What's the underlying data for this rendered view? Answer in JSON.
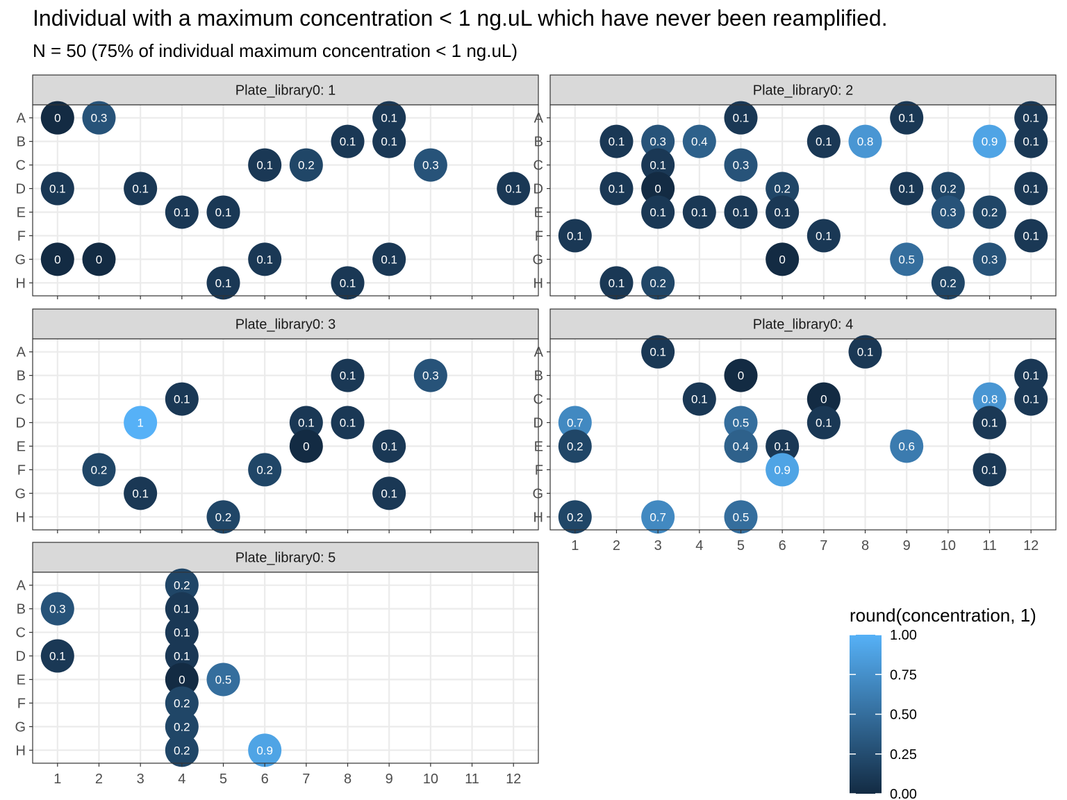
{
  "title": "Individual with a maximum concentration < 1 ng.uL which have never been reamplified.",
  "subtitle": "N = 50 (75% of individual maximum concentration < 1 ng.uL)",
  "chart_data": {
    "type": "scatter",
    "facet_variable": "Plate_library0",
    "rows": [
      "A",
      "B",
      "C",
      "D",
      "E",
      "F",
      "G",
      "H"
    ],
    "columns": [
      1,
      2,
      3,
      4,
      5,
      6,
      7,
      8,
      9,
      10,
      11,
      12
    ],
    "color_scale": {
      "title": "round(concentration, 1)",
      "min": 0,
      "max": 1,
      "breaks": [
        {
          "value": 1.0,
          "label": "1.00"
        },
        {
          "value": 0.75,
          "label": "0.75"
        },
        {
          "value": 0.5,
          "label": "0.50"
        },
        {
          "value": 0.25,
          "label": "0.25"
        },
        {
          "value": 0.0,
          "label": "0.00"
        }
      ],
      "low_color": "#132B43",
      "high_color": "#56B1F7"
    },
    "grid": true,
    "legend_position": "bottom-right",
    "panels": [
      {
        "label": "Plate_library0: 1",
        "points": [
          {
            "row": "A",
            "col": 1,
            "value": 0
          },
          {
            "row": "A",
            "col": 2,
            "value": 0.3
          },
          {
            "row": "A",
            "col": 9,
            "value": 0.1
          },
          {
            "row": "B",
            "col": 8,
            "value": 0.1
          },
          {
            "row": "B",
            "col": 9,
            "value": 0.1
          },
          {
            "row": "C",
            "col": 6,
            "value": 0.1
          },
          {
            "row": "C",
            "col": 7,
            "value": 0.2
          },
          {
            "row": "C",
            "col": 10,
            "value": 0.3
          },
          {
            "row": "D",
            "col": 1,
            "value": 0.1
          },
          {
            "row": "D",
            "col": 3,
            "value": 0.1
          },
          {
            "row": "D",
            "col": 12,
            "value": 0.1
          },
          {
            "row": "E",
            "col": 4,
            "value": 0.1
          },
          {
            "row": "E",
            "col": 5,
            "value": 0.1
          },
          {
            "row": "G",
            "col": 1,
            "value": 0
          },
          {
            "row": "G",
            "col": 2,
            "value": 0
          },
          {
            "row": "G",
            "col": 6,
            "value": 0.1
          },
          {
            "row": "G",
            "col": 9,
            "value": 0.1
          },
          {
            "row": "H",
            "col": 5,
            "value": 0.1
          },
          {
            "row": "H",
            "col": 8,
            "value": 0.1
          }
        ]
      },
      {
        "label": "Plate_library0: 2",
        "points": [
          {
            "row": "A",
            "col": 5,
            "value": 0.1
          },
          {
            "row": "A",
            "col": 9,
            "value": 0.1
          },
          {
            "row": "A",
            "col": 12,
            "value": 0.1
          },
          {
            "row": "B",
            "col": 2,
            "value": 0.1
          },
          {
            "row": "B",
            "col": 3,
            "value": 0.3
          },
          {
            "row": "B",
            "col": 4,
            "value": 0.4
          },
          {
            "row": "B",
            "col": 7,
            "value": 0.1
          },
          {
            "row": "B",
            "col": 8,
            "value": 0.8
          },
          {
            "row": "B",
            "col": 11,
            "value": 0.9
          },
          {
            "row": "B",
            "col": 12,
            "value": 0.1
          },
          {
            "row": "C",
            "col": 3,
            "value": 0.1
          },
          {
            "row": "C",
            "col": 5,
            "value": 0.3
          },
          {
            "row": "D",
            "col": 2,
            "value": 0.1
          },
          {
            "row": "D",
            "col": 3,
            "value": 0
          },
          {
            "row": "D",
            "col": 6,
            "value": 0.2
          },
          {
            "row": "D",
            "col": 9,
            "value": 0.1
          },
          {
            "row": "D",
            "col": 10,
            "value": 0.2
          },
          {
            "row": "D",
            "col": 12,
            "value": 0.1
          },
          {
            "row": "E",
            "col": 3,
            "value": 0.1
          },
          {
            "row": "E",
            "col": 4,
            "value": 0.1
          },
          {
            "row": "E",
            "col": 5,
            "value": 0.1
          },
          {
            "row": "E",
            "col": 6,
            "value": 0.1
          },
          {
            "row": "E",
            "col": 10,
            "value": 0.3
          },
          {
            "row": "E",
            "col": 11,
            "value": 0.2
          },
          {
            "row": "F",
            "col": 1,
            "value": 0.1
          },
          {
            "row": "F",
            "col": 7,
            "value": 0.1
          },
          {
            "row": "F",
            "col": 12,
            "value": 0.1
          },
          {
            "row": "G",
            "col": 6,
            "value": 0
          },
          {
            "row": "G",
            "col": 9,
            "value": 0.5
          },
          {
            "row": "G",
            "col": 11,
            "value": 0.3
          },
          {
            "row": "H",
            "col": 2,
            "value": 0.1
          },
          {
            "row": "H",
            "col": 3,
            "value": 0.2
          },
          {
            "row": "H",
            "col": 10,
            "value": 0.2
          }
        ]
      },
      {
        "label": "Plate_library0: 3",
        "points": [
          {
            "row": "B",
            "col": 8,
            "value": 0.1
          },
          {
            "row": "B",
            "col": 10,
            "value": 0.3
          },
          {
            "row": "C",
            "col": 4,
            "value": 0.1
          },
          {
            "row": "D",
            "col": 3,
            "value": 1
          },
          {
            "row": "D",
            "col": 7,
            "value": 0.1
          },
          {
            "row": "D",
            "col": 8,
            "value": 0.1
          },
          {
            "row": "E",
            "col": 7,
            "value": 0
          },
          {
            "row": "E",
            "col": 9,
            "value": 0.1
          },
          {
            "row": "F",
            "col": 2,
            "value": 0.2
          },
          {
            "row": "F",
            "col": 6,
            "value": 0.2
          },
          {
            "row": "G",
            "col": 3,
            "value": 0.1
          },
          {
            "row": "G",
            "col": 9,
            "value": 0.1
          },
          {
            "row": "H",
            "col": 5,
            "value": 0.2
          }
        ]
      },
      {
        "label": "Plate_library0: 4",
        "points": [
          {
            "row": "A",
            "col": 3,
            "value": 0.1
          },
          {
            "row": "A",
            "col": 8,
            "value": 0.1
          },
          {
            "row": "B",
            "col": 5,
            "value": 0
          },
          {
            "row": "B",
            "col": 12,
            "value": 0.1
          },
          {
            "row": "C",
            "col": 4,
            "value": 0.1
          },
          {
            "row": "C",
            "col": 7,
            "value": 0
          },
          {
            "row": "C",
            "col": 11,
            "value": 0.8
          },
          {
            "row": "C",
            "col": 12,
            "value": 0.1
          },
          {
            "row": "D",
            "col": 1,
            "value": 0.7
          },
          {
            "row": "D",
            "col": 5,
            "value": 0.5
          },
          {
            "row": "D",
            "col": 7,
            "value": 0.1
          },
          {
            "row": "D",
            "col": 11,
            "value": 0.1
          },
          {
            "row": "E",
            "col": 1,
            "value": 0.2
          },
          {
            "row": "E",
            "col": 5,
            "value": 0.4
          },
          {
            "row": "E",
            "col": 6,
            "value": 0.1
          },
          {
            "row": "E",
            "col": 9,
            "value": 0.6
          },
          {
            "row": "F",
            "col": 6,
            "value": 0.9
          },
          {
            "row": "F",
            "col": 11,
            "value": 0.1
          },
          {
            "row": "H",
            "col": 1,
            "value": 0.2
          },
          {
            "row": "H",
            "col": 3,
            "value": 0.7
          },
          {
            "row": "H",
            "col": 5,
            "value": 0.5
          }
        ]
      },
      {
        "label": "Plate_library0: 5",
        "points": [
          {
            "row": "A",
            "col": 4,
            "value": 0.2
          },
          {
            "row": "B",
            "col": 1,
            "value": 0.3
          },
          {
            "row": "B",
            "col": 4,
            "value": 0.1
          },
          {
            "row": "C",
            "col": 4,
            "value": 0.1
          },
          {
            "row": "D",
            "col": 1,
            "value": 0.1
          },
          {
            "row": "D",
            "col": 4,
            "value": 0.1
          },
          {
            "row": "E",
            "col": 4,
            "value": 0
          },
          {
            "row": "E",
            "col": 5,
            "value": 0.5
          },
          {
            "row": "F",
            "col": 4,
            "value": 0.2
          },
          {
            "row": "G",
            "col": 4,
            "value": 0.2
          },
          {
            "row": "H",
            "col": 4,
            "value": 0.2
          },
          {
            "row": "H",
            "col": 6,
            "value": 0.9
          }
        ]
      }
    ]
  }
}
